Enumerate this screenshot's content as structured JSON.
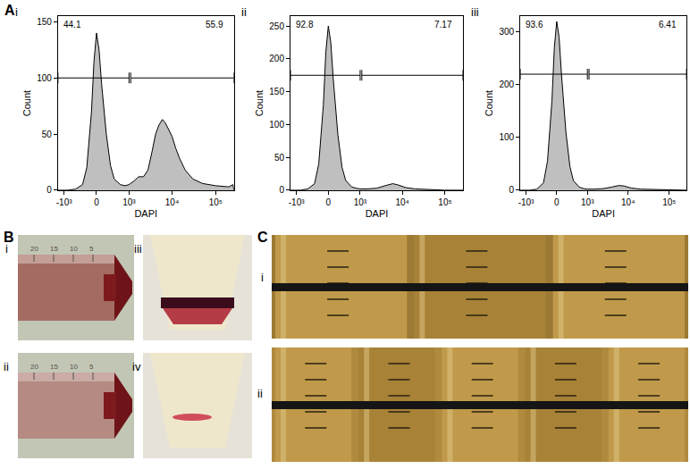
{
  "panel_labels": [
    "A",
    "B",
    "C"
  ],
  "chart_data": [
    {
      "type": "area",
      "panel": "i",
      "x_label": "DAPI",
      "y_label": "Count",
      "color": "#bfbfbf",
      "x": [
        -1400,
        -800,
        -500,
        -300,
        -200,
        -100,
        -50,
        0,
        50,
        100,
        200,
        300,
        400,
        600,
        800,
        1000,
        1300,
        1700,
        2200,
        2800,
        3500,
        4200,
        5000,
        6000,
        7000,
        8000,
        10000,
        12000,
        15000,
        20000,
        30000,
        50000,
        100000,
        200000,
        250000,
        262144
      ],
      "values": [
        0,
        0,
        1,
        5,
        20,
        70,
        115,
        140,
        125,
        95,
        50,
        22,
        10,
        5,
        4,
        5,
        8,
        12,
        12,
        18,
        35,
        50,
        58,
        63,
        60,
        55,
        48,
        38,
        28,
        18,
        10,
        6,
        4,
        3,
        5,
        0
      ],
      "xlim": [
        -1400,
        262144
      ],
      "ylim": [
        0,
        155
      ],
      "xticks": [
        {
          "value": -1000,
          "label": "-10³"
        },
        0,
        {
          "value": 1000,
          "label": "10³"
        },
        {
          "value": 10000,
          "label": "10⁴"
        },
        {
          "value": 100000,
          "label": "10⁵"
        }
      ],
      "yticks": [
        0,
        50,
        100,
        150
      ],
      "gates": [
        {
          "value": 44.1,
          "range": [
            -1400,
            1000
          ],
          "y": 100
        },
        {
          "value": 55.9,
          "range": [
            1100,
            262144
          ],
          "y": 100
        }
      ]
    },
    {
      "type": "area",
      "panel": "ii",
      "x_label": "DAPI",
      "y_label": "Count",
      "color": "#bfbfbf",
      "x": [
        -1400,
        -800,
        -500,
        -300,
        -200,
        -100,
        -50,
        0,
        50,
        100,
        200,
        300,
        400,
        600,
        800,
        1000,
        1500,
        2500,
        4000,
        6000,
        8000,
        12000,
        20000,
        50000,
        100000,
        262144
      ],
      "values": [
        0,
        0,
        2,
        10,
        40,
        130,
        210,
        250,
        225,
        170,
        85,
        35,
        15,
        5,
        3,
        2,
        2,
        3,
        7,
        10,
        8,
        4,
        2,
        1,
        0,
        0
      ],
      "xlim": [
        -1400,
        262144
      ],
      "ylim": [
        0,
        265
      ],
      "xticks": [
        {
          "value": -1000,
          "label": "-10³"
        },
        0,
        {
          "value": 1000,
          "label": "10³"
        },
        {
          "value": 10000,
          "label": "10⁴"
        },
        {
          "value": 100000,
          "label": "10⁵"
        }
      ],
      "yticks": [
        0,
        50,
        100,
        150,
        200,
        250
      ],
      "gates": [
        {
          "value": 92.8,
          "range": [
            -1400,
            1000
          ],
          "y": 175
        },
        {
          "value": 7.17,
          "range": [
            1100,
            262144
          ],
          "y": 175
        }
      ]
    },
    {
      "type": "area",
      "panel": "iii",
      "x_label": "DAPI",
      "y_label": "Count",
      "color": "#bfbfbf",
      "x": [
        -1400,
        -800,
        -500,
        -300,
        -200,
        -100,
        -50,
        0,
        50,
        100,
        200,
        300,
        400,
        600,
        800,
        1000,
        1500,
        2500,
        4000,
        6000,
        8000,
        12000,
        20000,
        50000,
        100000,
        262144
      ],
      "values": [
        0,
        0,
        2,
        14,
        55,
        170,
        270,
        320,
        290,
        220,
        110,
        45,
        18,
        6,
        3,
        2,
        2,
        3,
        6,
        9,
        8,
        4,
        2,
        1,
        0,
        0
      ],
      "xlim": [
        -1400,
        262144
      ],
      "ylim": [
        0,
        330
      ],
      "xticks": [
        {
          "value": -1000,
          "label": "-10³"
        },
        0,
        {
          "value": 1000,
          "label": "10³"
        },
        {
          "value": 10000,
          "label": "10⁴"
        },
        {
          "value": 100000,
          "label": "10⁵"
        }
      ],
      "yticks": [
        0,
        100,
        200,
        300
      ],
      "gates": [
        {
          "value": 93.6,
          "range": [
            -1400,
            1000
          ],
          "y": 220
        },
        {
          "value": 6.41,
          "range": [
            1100,
            262144
          ],
          "y": 220
        }
      ]
    }
  ],
  "photos": [
    {
      "panel": "B",
      "label": "i",
      "marks": [
        "20",
        "15",
        "10",
        "5"
      ]
    },
    {
      "panel": "B",
      "label": "ii",
      "marks": [
        "20",
        "15",
        "10",
        "5"
      ]
    },
    {
      "panel": "B",
      "label": "iii"
    },
    {
      "panel": "B",
      "label": "iv"
    },
    {
      "panel": "C",
      "label": "i"
    },
    {
      "panel": "C",
      "label": "ii"
    }
  ]
}
